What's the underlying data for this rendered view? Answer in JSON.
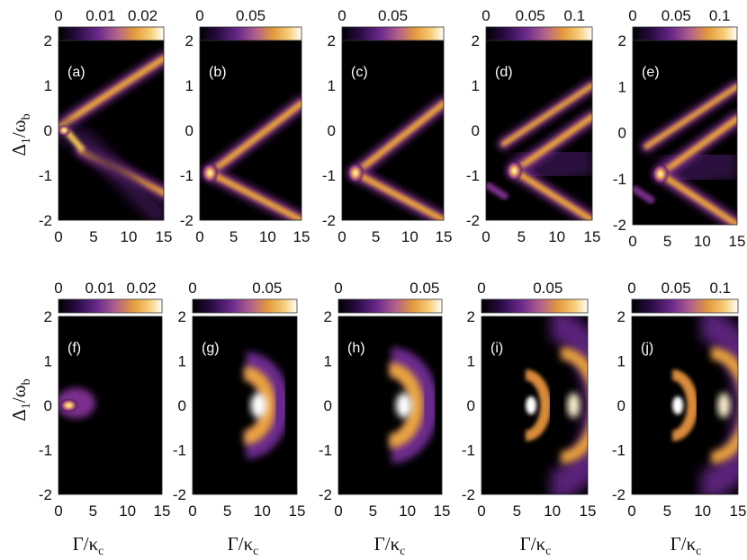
{
  "figure": {
    "ylabel_main": "Δ",
    "ylabel_sub1": "1",
    "ylabel_slash": "/",
    "ylabel_omega": "ω",
    "ylabel_sub2": "b",
    "xlabel_main": "Γ/κ",
    "xlabel_sub": "c"
  },
  "chart_data": [
    {
      "type": "heatmap",
      "panel": "(a)",
      "xlim": [
        0,
        15
      ],
      "ylim": [
        -2,
        2
      ],
      "xticks": [
        "0",
        "5",
        "10",
        "15"
      ],
      "yticks": [
        "2",
        "1",
        "0",
        "-1",
        "-2"
      ],
      "colorbar": {
        "ticks": [
          "0",
          "0.01",
          "0.02"
        ],
        "tick_values": [
          0,
          0.01,
          0.02
        ],
        "max": 0.025
      },
      "colormap": "black-purple-orange-white",
      "features": {
        "shape": "two crossing branches with avoided crossing near origin",
        "branch_up": {
          "from": [
            0,
            0
          ],
          "to": [
            15,
            1.6
          ]
        },
        "branch_down": {
          "from": [
            3,
            -0.5
          ],
          "to": [
            15,
            -1.4
          ]
        }
      }
    },
    {
      "type": "heatmap",
      "panel": "(b)",
      "xlim": [
        0,
        15
      ],
      "ylim": [
        -2,
        2
      ],
      "xticks": [
        "0",
        "5",
        "10",
        "15"
      ],
      "yticks": [
        "2",
        "1",
        "0",
        "-1",
        "-2"
      ],
      "colorbar": {
        "ticks": [
          "0",
          "0.05"
        ],
        "tick_values": [
          0,
          0.05
        ],
        "max": 0.1
      },
      "colormap": "black-purple-orange-white",
      "features": {
        "shape": "V-shaped branches",
        "vertex": [
          1.5,
          -0.95
        ],
        "branch_up_end": [
          15,
          0.6
        ],
        "branch_down_end": [
          15,
          -2
        ]
      }
    },
    {
      "type": "heatmap",
      "panel": "(c)",
      "xlim": [
        0,
        15
      ],
      "ylim": [
        -2,
        2
      ],
      "xticks": [
        "0",
        "5",
        "10",
        "15"
      ],
      "yticks": [
        "2",
        "1",
        "0",
        "-1",
        "-2"
      ],
      "colorbar": {
        "ticks": [
          "0",
          "0.05"
        ],
        "tick_values": [
          0,
          0.05
        ],
        "max": 0.1
      },
      "colormap": "black-purple-orange-white",
      "features": {
        "shape": "V-shaped branches",
        "vertex": [
          2,
          -0.95
        ],
        "branch_up_end": [
          15,
          0.6
        ],
        "branch_down_end": [
          15,
          -2
        ]
      }
    },
    {
      "type": "heatmap",
      "panel": "(d)",
      "xlim": [
        0,
        15
      ],
      "ylim": [
        -2,
        2
      ],
      "xticks": [
        "0",
        "5",
        "10",
        "15"
      ],
      "yticks": [
        "2",
        "1",
        "0",
        "-1",
        "-2"
      ],
      "colorbar": {
        "ticks": [
          "0",
          "0.05",
          "0.1"
        ],
        "tick_values": [
          0,
          0.05,
          0.1
        ],
        "max": 0.12
      },
      "colormap": "black-purple-orange-white",
      "features": {
        "shape": "V-shaped branches plus upper parallel branch",
        "vertex": [
          4,
          -0.9
        ],
        "branch_up_end": [
          15,
          0.3
        ],
        "branch_down_end": [
          15,
          -2
        ],
        "upper_branch": {
          "from": [
            2.5,
            -0.3
          ],
          "to": [
            15,
            1.0
          ]
        }
      }
    },
    {
      "type": "heatmap",
      "panel": "(e)",
      "xlim": [
        0,
        15
      ],
      "ylim": [
        -2,
        2
      ],
      "xticks": [
        "0",
        "5",
        "10",
        "15"
      ],
      "yticks": [
        "2",
        "1",
        "0",
        "-1",
        "-2"
      ],
      "colorbar": {
        "ticks": [
          "0",
          "0.05",
          "0.1"
        ],
        "tick_values": [
          0,
          0.05,
          0.1
        ],
        "max": 0.12
      },
      "colormap": "black-purple-orange-white",
      "features": {
        "shape": "V-shaped branches plus upper parallel branch",
        "vertex": [
          4,
          -0.9
        ],
        "branch_up_end": [
          15,
          0.3
        ],
        "branch_down_end": [
          15,
          -2
        ],
        "upper_branch": {
          "from": [
            2,
            -0.3
          ],
          "to": [
            15,
            1.0
          ]
        }
      }
    },
    {
      "type": "heatmap",
      "panel": "(f)",
      "xlim": [
        0,
        15
      ],
      "ylim": [
        -2,
        2
      ],
      "xticks": [
        "0",
        "5",
        "10",
        "15"
      ],
      "yticks": [
        "2",
        "1",
        "0",
        "-1",
        "-2"
      ],
      "colorbar": {
        "ticks": [
          "0",
          "0.01",
          "0.02"
        ],
        "tick_values": [
          0,
          0.01,
          0.02
        ],
        "max": 0.025
      },
      "colormap": "black-purple-orange-white",
      "features": {
        "shape": "small blob",
        "center": [
          2,
          0.05
        ],
        "peak": [
          1,
          0
        ]
      }
    },
    {
      "type": "heatmap",
      "panel": "(g)",
      "xlim": [
        0,
        15
      ],
      "ylim": [
        -2,
        2
      ],
      "xticks": [
        "0",
        "5",
        "10",
        "15"
      ],
      "yticks": [
        "2",
        "1",
        "0",
        "-1",
        "-2"
      ],
      "colorbar": {
        "ticks": [
          "0",
          "0.05"
        ],
        "tick_values": [
          0,
          0.05
        ],
        "max": 0.07
      },
      "colormap": "black-purple-orange-white",
      "features": {
        "shape": "crescent",
        "peak": [
          9.5,
          0
        ],
        "extent_y": [
          -0.9,
          0.9
        ]
      }
    },
    {
      "type": "heatmap",
      "panel": "(h)",
      "xlim": [
        0,
        15
      ],
      "ylim": [
        -2,
        2
      ],
      "xticks": [
        "0",
        "5",
        "10",
        "15"
      ],
      "yticks": [
        "2",
        "1",
        "0",
        "-1",
        "-2"
      ],
      "colorbar": {
        "ticks": [
          "0",
          "0.05"
        ],
        "tick_values": [
          0,
          0.05
        ],
        "max": 0.06
      },
      "colormap": "black-purple-orange-white",
      "features": {
        "shape": "crescent",
        "peak": [
          9.5,
          0
        ],
        "extent_y": [
          -1.0,
          1.0
        ]
      }
    },
    {
      "type": "heatmap",
      "panel": "(i)",
      "xlim": [
        0,
        15
      ],
      "ylim": [
        -2,
        2
      ],
      "xticks": [
        "0",
        "5",
        "10",
        "15"
      ],
      "yticks": [
        "2",
        "1",
        "0",
        "-1",
        "-2"
      ],
      "colorbar": {
        "ticks": [
          "0",
          "0.05"
        ],
        "tick_values": [
          0,
          0.05
        ],
        "max": 0.08
      },
      "colormap": "black-purple-orange-white",
      "features": {
        "shape": "double crescent",
        "inner_peak": [
          7,
          0
        ],
        "outer_peak": [
          13,
          0
        ],
        "extent_y": [
          -1.8,
          1.8
        ]
      }
    },
    {
      "type": "heatmap",
      "panel": "(j)",
      "xlim": [
        0,
        15
      ],
      "ylim": [
        -2,
        2
      ],
      "xticks": [
        "0",
        "5",
        "10",
        "15"
      ],
      "yticks": [
        "2",
        "1",
        "0",
        "-1",
        "-2"
      ],
      "colorbar": {
        "ticks": [
          "0",
          "0.05",
          "0.1"
        ],
        "tick_values": [
          0,
          0.05,
          0.1
        ],
        "max": 0.12
      },
      "colormap": "black-purple-orange-white",
      "features": {
        "shape": "double crescent",
        "inner_peak": [
          6.5,
          0
        ],
        "outer_peak": [
          13,
          0
        ],
        "extent_y": [
          -1.8,
          1.8
        ]
      }
    }
  ]
}
